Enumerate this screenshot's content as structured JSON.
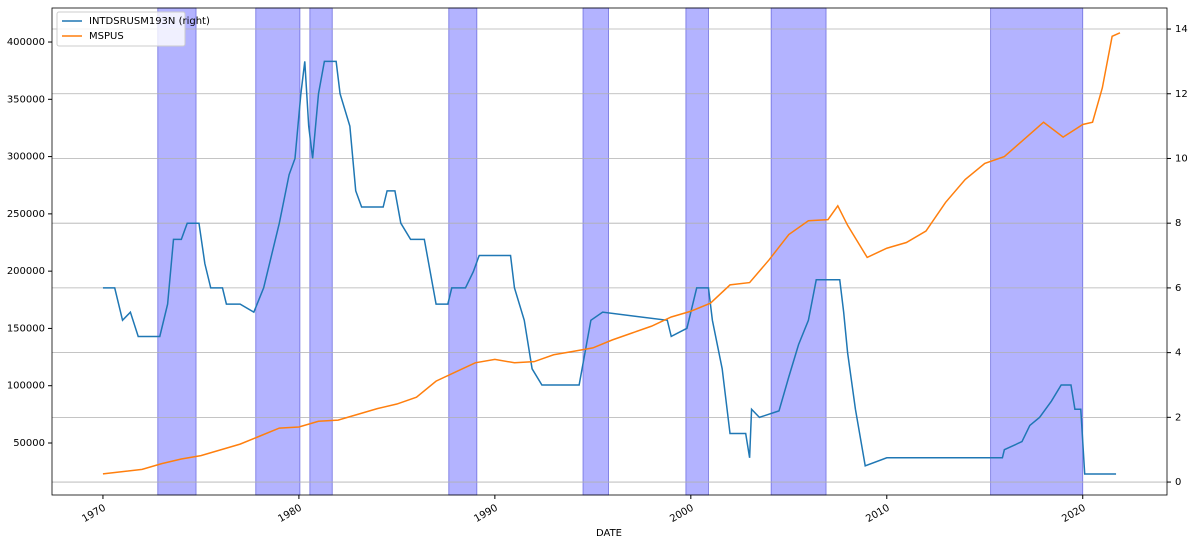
{
  "chart_data": {
    "type": "line",
    "x_label": "DATE",
    "xlim": [
      1967.4,
      2024.3
    ],
    "xticks": [
      1970,
      1980,
      1990,
      2000,
      2010,
      2020
    ],
    "ylim": [
      4600,
      429700
    ],
    "yticks": [
      50000,
      100000,
      150000,
      200000,
      250000,
      300000,
      350000,
      400000
    ],
    "y2lim": [
      -0.4,
      14.65
    ],
    "y2ticks": [
      0,
      2,
      4,
      6,
      8,
      10,
      12,
      14
    ],
    "grid": true,
    "legend": "upper-left",
    "shade_color": "#b3b3ff",
    "shaded_spans": [
      [
        1972.8,
        1974.75
      ],
      [
        1977.8,
        1980.05
      ],
      [
        1980.56,
        1981.7
      ],
      [
        1987.65,
        1989.08
      ],
      [
        1994.5,
        1995.8
      ],
      [
        1999.75,
        2000.9
      ],
      [
        2004.1,
        2006.9
      ],
      [
        2015.3,
        2020.0
      ]
    ],
    "series": [
      {
        "name": "INTDSRUSM193N (right)",
        "color": "#1f77b4",
        "axis": "y2",
        "x": [
          1970,
          1970.6,
          1971,
          1971.4,
          1971.8,
          1972.9,
          1973.3,
          1973.6,
          1974,
          1974.3,
          1974.9,
          1975.2,
          1975.5,
          1976.1,
          1976.3,
          1977,
          1977.7,
          1978.2,
          1978.6,
          1979,
          1979.5,
          1979.8,
          1980.1,
          1980.3,
          1980.5,
          1980.7,
          1981,
          1981.3,
          1981.9,
          1982.1,
          1982.6,
          1982.9,
          1983.2,
          1984.3,
          1984.5,
          1984.9,
          1985.2,
          1985.7,
          1986.4,
          1986.7,
          1987,
          1987.6,
          1987.8,
          1988.5,
          1988.9,
          1989.2,
          1990.8,
          1991,
          1991.5,
          1991.9,
          1992.4,
          1994.3,
          1994.6,
          1994.9,
          1995.5,
          1998.8,
          1999,
          1999.8,
          2000.3,
          2000.9,
          2001.1,
          2001.6,
          2001.9,
          2002,
          2002.8,
          2003,
          2003.1,
          2003.5,
          2004.5,
          2005,
          2005.5,
          2006,
          2006.4,
          2007.6,
          2007.8,
          2008,
          2008.4,
          2008.9,
          2010,
          2015.9,
          2016,
          2016.9,
          2017.3,
          2017.8,
          2018.4,
          2018.9,
          2019.4,
          2019.6,
          2019.9,
          2020.1,
          2021.7
        ],
        "values": [
          6,
          6,
          5,
          5.25,
          4.5,
          4.5,
          5.5,
          7.5,
          7.5,
          8,
          8,
          6.75,
          6,
          6,
          5.5,
          5.5,
          5.25,
          6,
          7,
          8,
          9.5,
          10,
          12,
          13,
          11,
          10,
          12,
          13,
          13,
          12,
          11,
          9,
          8.5,
          8.5,
          9,
          9,
          8,
          7.5,
          7.5,
          6.5,
          5.5,
          5.5,
          6,
          6,
          6.5,
          7,
          7,
          6,
          5,
          3.5,
          3,
          3,
          4,
          5,
          5.25,
          5,
          4.5,
          4.75,
          6,
          6,
          5,
          3.5,
          2,
          1.5,
          1.5,
          0.75,
          2.25,
          2,
          2.2,
          3.25,
          4.25,
          5,
          6.25,
          6.25,
          5.25,
          4,
          2.25,
          0.5,
          0.75,
          0.75,
          1,
          1.25,
          1.75,
          2,
          2.5,
          3,
          3,
          2.25,
          2.25,
          0.25,
          0.25
        ]
      },
      {
        "name": "MSPUS",
        "color": "#ff7f0e",
        "x": [
          1970,
          1971,
          1972,
          1973,
          1974,
          1975,
          1976,
          1977,
          1978,
          1979,
          1980,
          1981,
          1982,
          1983,
          1984,
          1985,
          1986,
          1987,
          1988,
          1989,
          1990,
          1991,
          1992,
          1993,
          1994,
          1995,
          1996,
          1997,
          1998,
          1999,
          2000,
          2001,
          2002,
          2003,
          2004,
          2005,
          2006,
          2007,
          2007.5,
          2008,
          2009,
          2010,
          2011,
          2012,
          2013,
          2014,
          2015,
          2016,
          2017,
          2018,
          2019,
          2020,
          2020.5,
          2021,
          2021.5,
          2021.9
        ],
        "values": [
          23000,
          25000,
          27000,
          32000,
          36000,
          39000,
          44000,
          49000,
          56000,
          63000,
          64000,
          69000,
          70000,
          75000,
          80000,
          84000,
          90000,
          104000,
          112000,
          120000,
          123000,
          120000,
          121000,
          127000,
          130000,
          133000,
          140000,
          146000,
          152000,
          160000,
          165000,
          172000,
          188000,
          190000,
          210000,
          232000,
          244000,
          245000,
          257000,
          240000,
          212000,
          220000,
          225000,
          235000,
          260000,
          280000,
          294000,
          300000,
          315000,
          330000,
          317000,
          328000,
          330000,
          360000,
          405000,
          408000
        ]
      }
    ]
  }
}
